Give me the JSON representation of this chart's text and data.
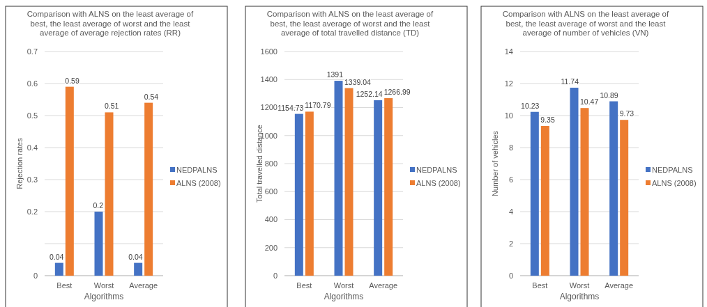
{
  "chart_data": [
    {
      "type": "bar",
      "title": "Comparison with ALNS on the least average of best, the least average of worst and the least average of average rejection rates (RR)",
      "xlabel": "Algorithms",
      "ylabel": "Rejection rates",
      "categories": [
        "Best",
        "Worst",
        "Average"
      ],
      "series": [
        {
          "name": "NEDPALNS",
          "color": "#4472c4",
          "values": [
            0.04,
            0.2,
            0.04
          ]
        },
        {
          "name": "ALNS (2008)",
          "color": "#ed7d31",
          "values": [
            0.59,
            0.51,
            0.54
          ]
        }
      ],
      "ylim": [
        0,
        0.7
      ],
      "yticks": [
        0,
        {
          "value": 0.1,
          "label": null
        },
        0.2,
        0.3,
        0.4,
        0.5,
        0.6,
        0.7
      ],
      "grid": "y",
      "legend": "right",
      "data_labels": true
    },
    {
      "type": "bar",
      "title": "Comparison with ALNS on the least average of best, the least average of worst and the least average of total travelled distance (TD)",
      "xlabel": "Algorithms",
      "ylabel": "Total travelled distance",
      "categories": [
        "Best",
        "Worst",
        "Average"
      ],
      "series": [
        {
          "name": "NEDPALNS",
          "color": "#4472c4",
          "values": [
            1154.73,
            1391,
            1252.14
          ]
        },
        {
          "name": "ALNS (2008)",
          "color": "#ed7d31",
          "values": [
            1170.79,
            1339.04,
            1266.99
          ]
        }
      ],
      "ylim": [
        0,
        1600
      ],
      "yticks": [
        0,
        200,
        400,
        600,
        800,
        1000,
        1200,
        1400,
        1600
      ],
      "grid": "y",
      "legend": "right",
      "data_labels": true
    },
    {
      "type": "bar",
      "title": "Comparison with ALNS on the least average of best, the least average of worst and the least average of number of vehicles (VN)",
      "xlabel": "Algorithms",
      "ylabel": "Number of vehicles",
      "categories": [
        "Best",
        "Worst",
        "Average"
      ],
      "series": [
        {
          "name": "NEDPALNS",
          "color": "#4472c4",
          "values": [
            10.23,
            11.74,
            10.89
          ]
        },
        {
          "name": "ALNS (2008)",
          "color": "#ed7d31",
          "values": [
            9.35,
            10.47,
            9.73
          ]
        }
      ],
      "ylim": [
        0,
        14
      ],
      "yticks": [
        0,
        2,
        4,
        6,
        8,
        10,
        12,
        14
      ],
      "grid": "y",
      "legend": "right",
      "data_labels": true
    }
  ]
}
